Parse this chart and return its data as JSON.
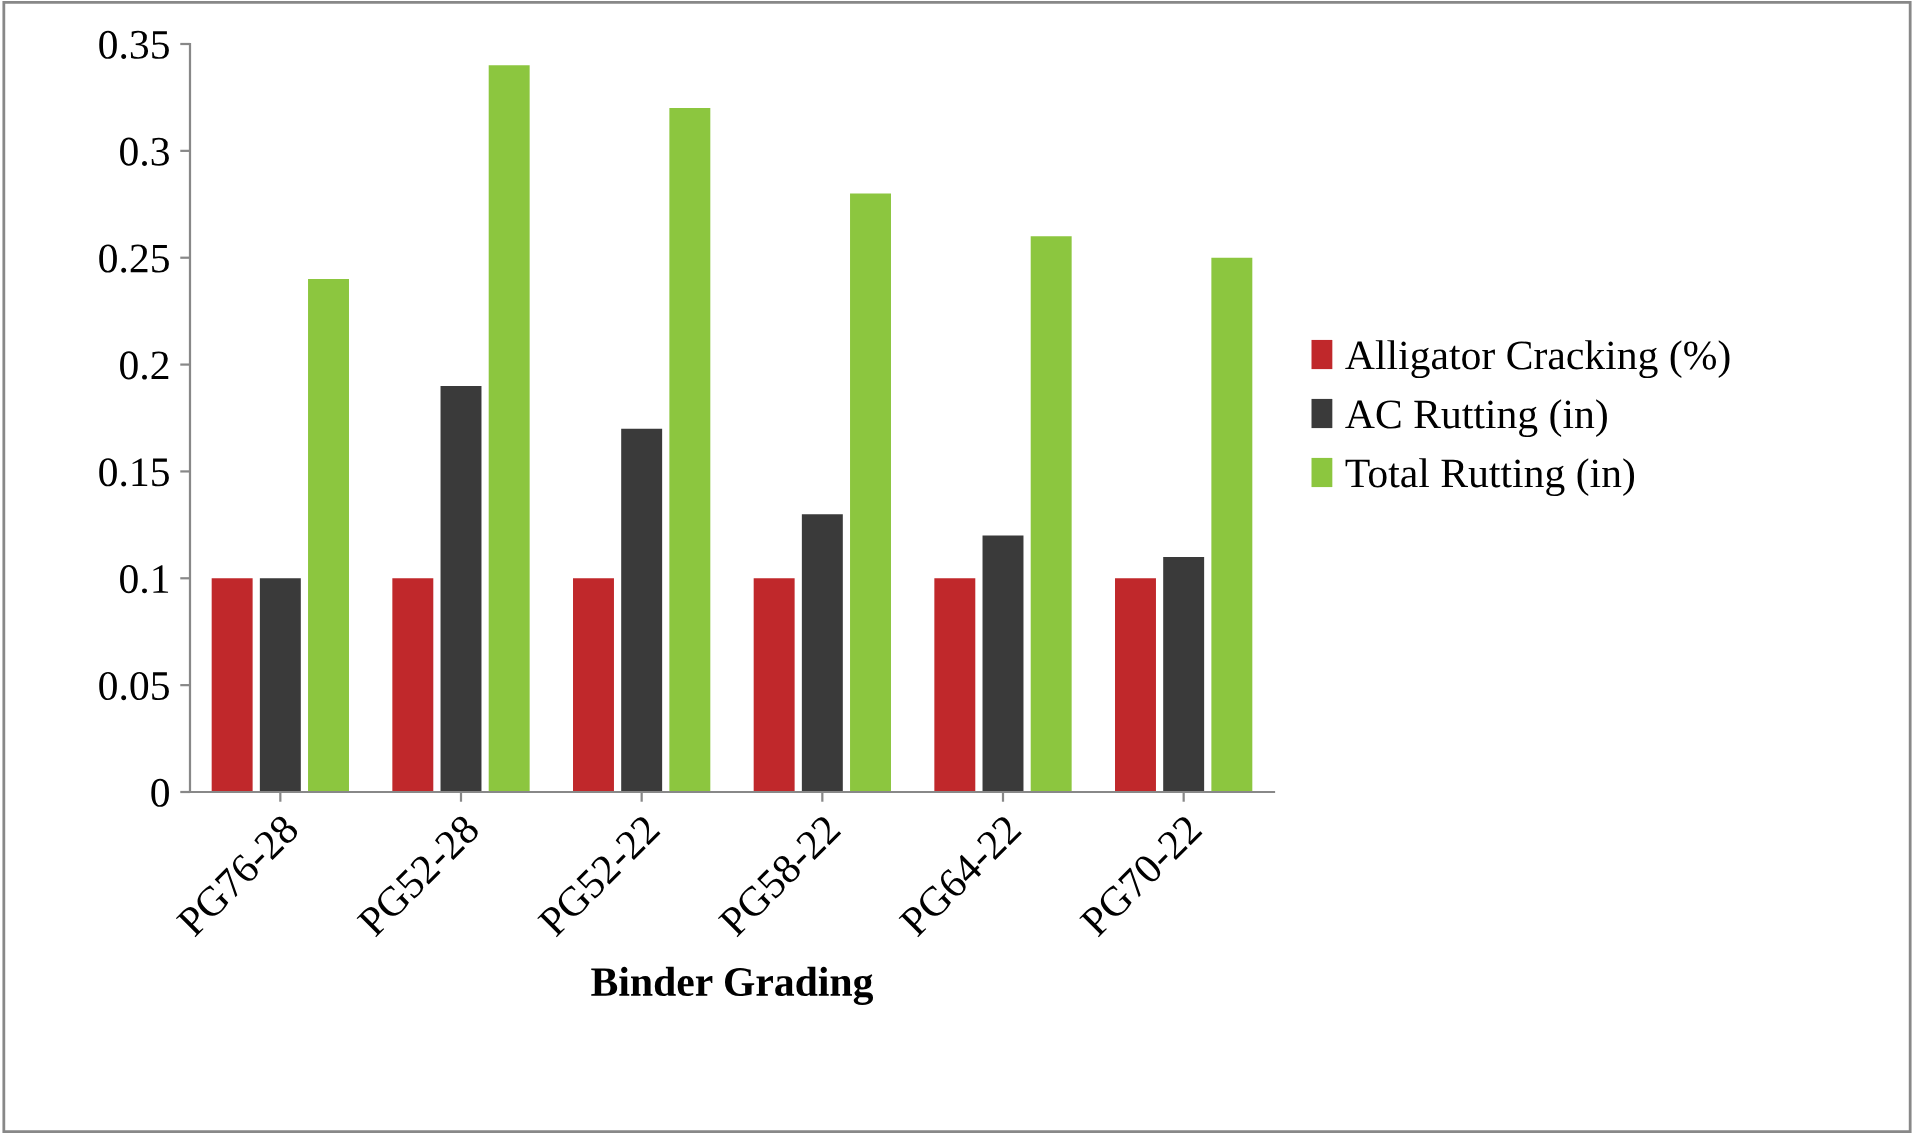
{
  "chart_data": {
    "type": "bar",
    "xlabel": "Binder Grading",
    "categories": [
      "PG76-28",
      "PG52-28",
      "PG52-22",
      "PG58-22",
      "PG64-22",
      "PG70-22"
    ],
    "series": [
      {
        "name": "Alligator Cracking (%)",
        "color": "#c0282b",
        "values": [
          0.1,
          0.1,
          0.1,
          0.1,
          0.1,
          0.1
        ]
      },
      {
        "name": "AC Rutting (in)",
        "color": "#3a3a3a",
        "values": [
          0.1,
          0.19,
          0.17,
          0.13,
          0.12,
          0.11
        ]
      },
      {
        "name": "Total Rutting (in)",
        "color": "#8cc63f",
        "values": [
          0.24,
          0.34,
          0.32,
          0.28,
          0.26,
          0.25
        ]
      }
    ],
    "ylim": [
      0,
      0.35
    ],
    "yticks": [
      0,
      0.05,
      0.1,
      0.15,
      0.2,
      0.25,
      0.3,
      0.35
    ],
    "grid": false,
    "legend": "right"
  }
}
